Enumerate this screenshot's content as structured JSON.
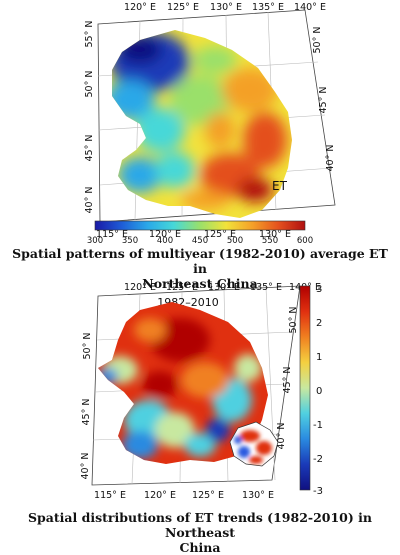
{
  "map1": {
    "top_lon_labels": [
      "120° E",
      "125° E",
      "130° E",
      "135° E",
      "140° E"
    ],
    "bottom_lon_labels": [
      "115° E",
      "120° E",
      "125° E",
      "130° E"
    ],
    "left_lat_labels": [
      "55° N",
      "50° N",
      "45° N",
      "40° N"
    ],
    "right_lat_labels": [
      "50° N",
      "45° N",
      "40° N"
    ],
    "inset_label": "ET",
    "colorbar_ticks": [
      "300",
      "350",
      "400",
      "450",
      "500",
      "550",
      "600"
    ],
    "colorbar_colors": [
      "#1a1aa6",
      "#1e5bd6",
      "#2aa8e8",
      "#46d8d8",
      "#9ae06a",
      "#f2e23a",
      "#f4a028",
      "#e4501e",
      "#b01010"
    ],
    "caption_line1": "Spatial patterns of multiyear (1982-2010) average ET in",
    "caption_line2": "Northeast China"
  },
  "map2": {
    "title": "1982–2010",
    "top_lon_labels": [
      "120° E",
      "125° E",
      "130° E",
      "135° E",
      "140° E"
    ],
    "bottom_lon_labels": [
      "115° E",
      "120° E",
      "125° E",
      "130° E"
    ],
    "left_lat_labels": [
      "50° N",
      "45° N",
      "40° N"
    ],
    "right_lat_labels": [
      "50° N",
      "45° N",
      "40° N"
    ],
    "colorbar_ticks": [
      "3",
      "2",
      "1",
      "0",
      "-1",
      "-2",
      "-3"
    ],
    "colorbar_colors": [
      "#b00000",
      "#e03010",
      "#f08020",
      "#f4d040",
      "#c8e8a0",
      "#50d0e0",
      "#2a8ae0",
      "#1a3ab8",
      "#101080"
    ],
    "caption_line1": "Spatial distributions of ET trends (1982-2010) in Northeast",
    "caption_line2": "China"
  }
}
